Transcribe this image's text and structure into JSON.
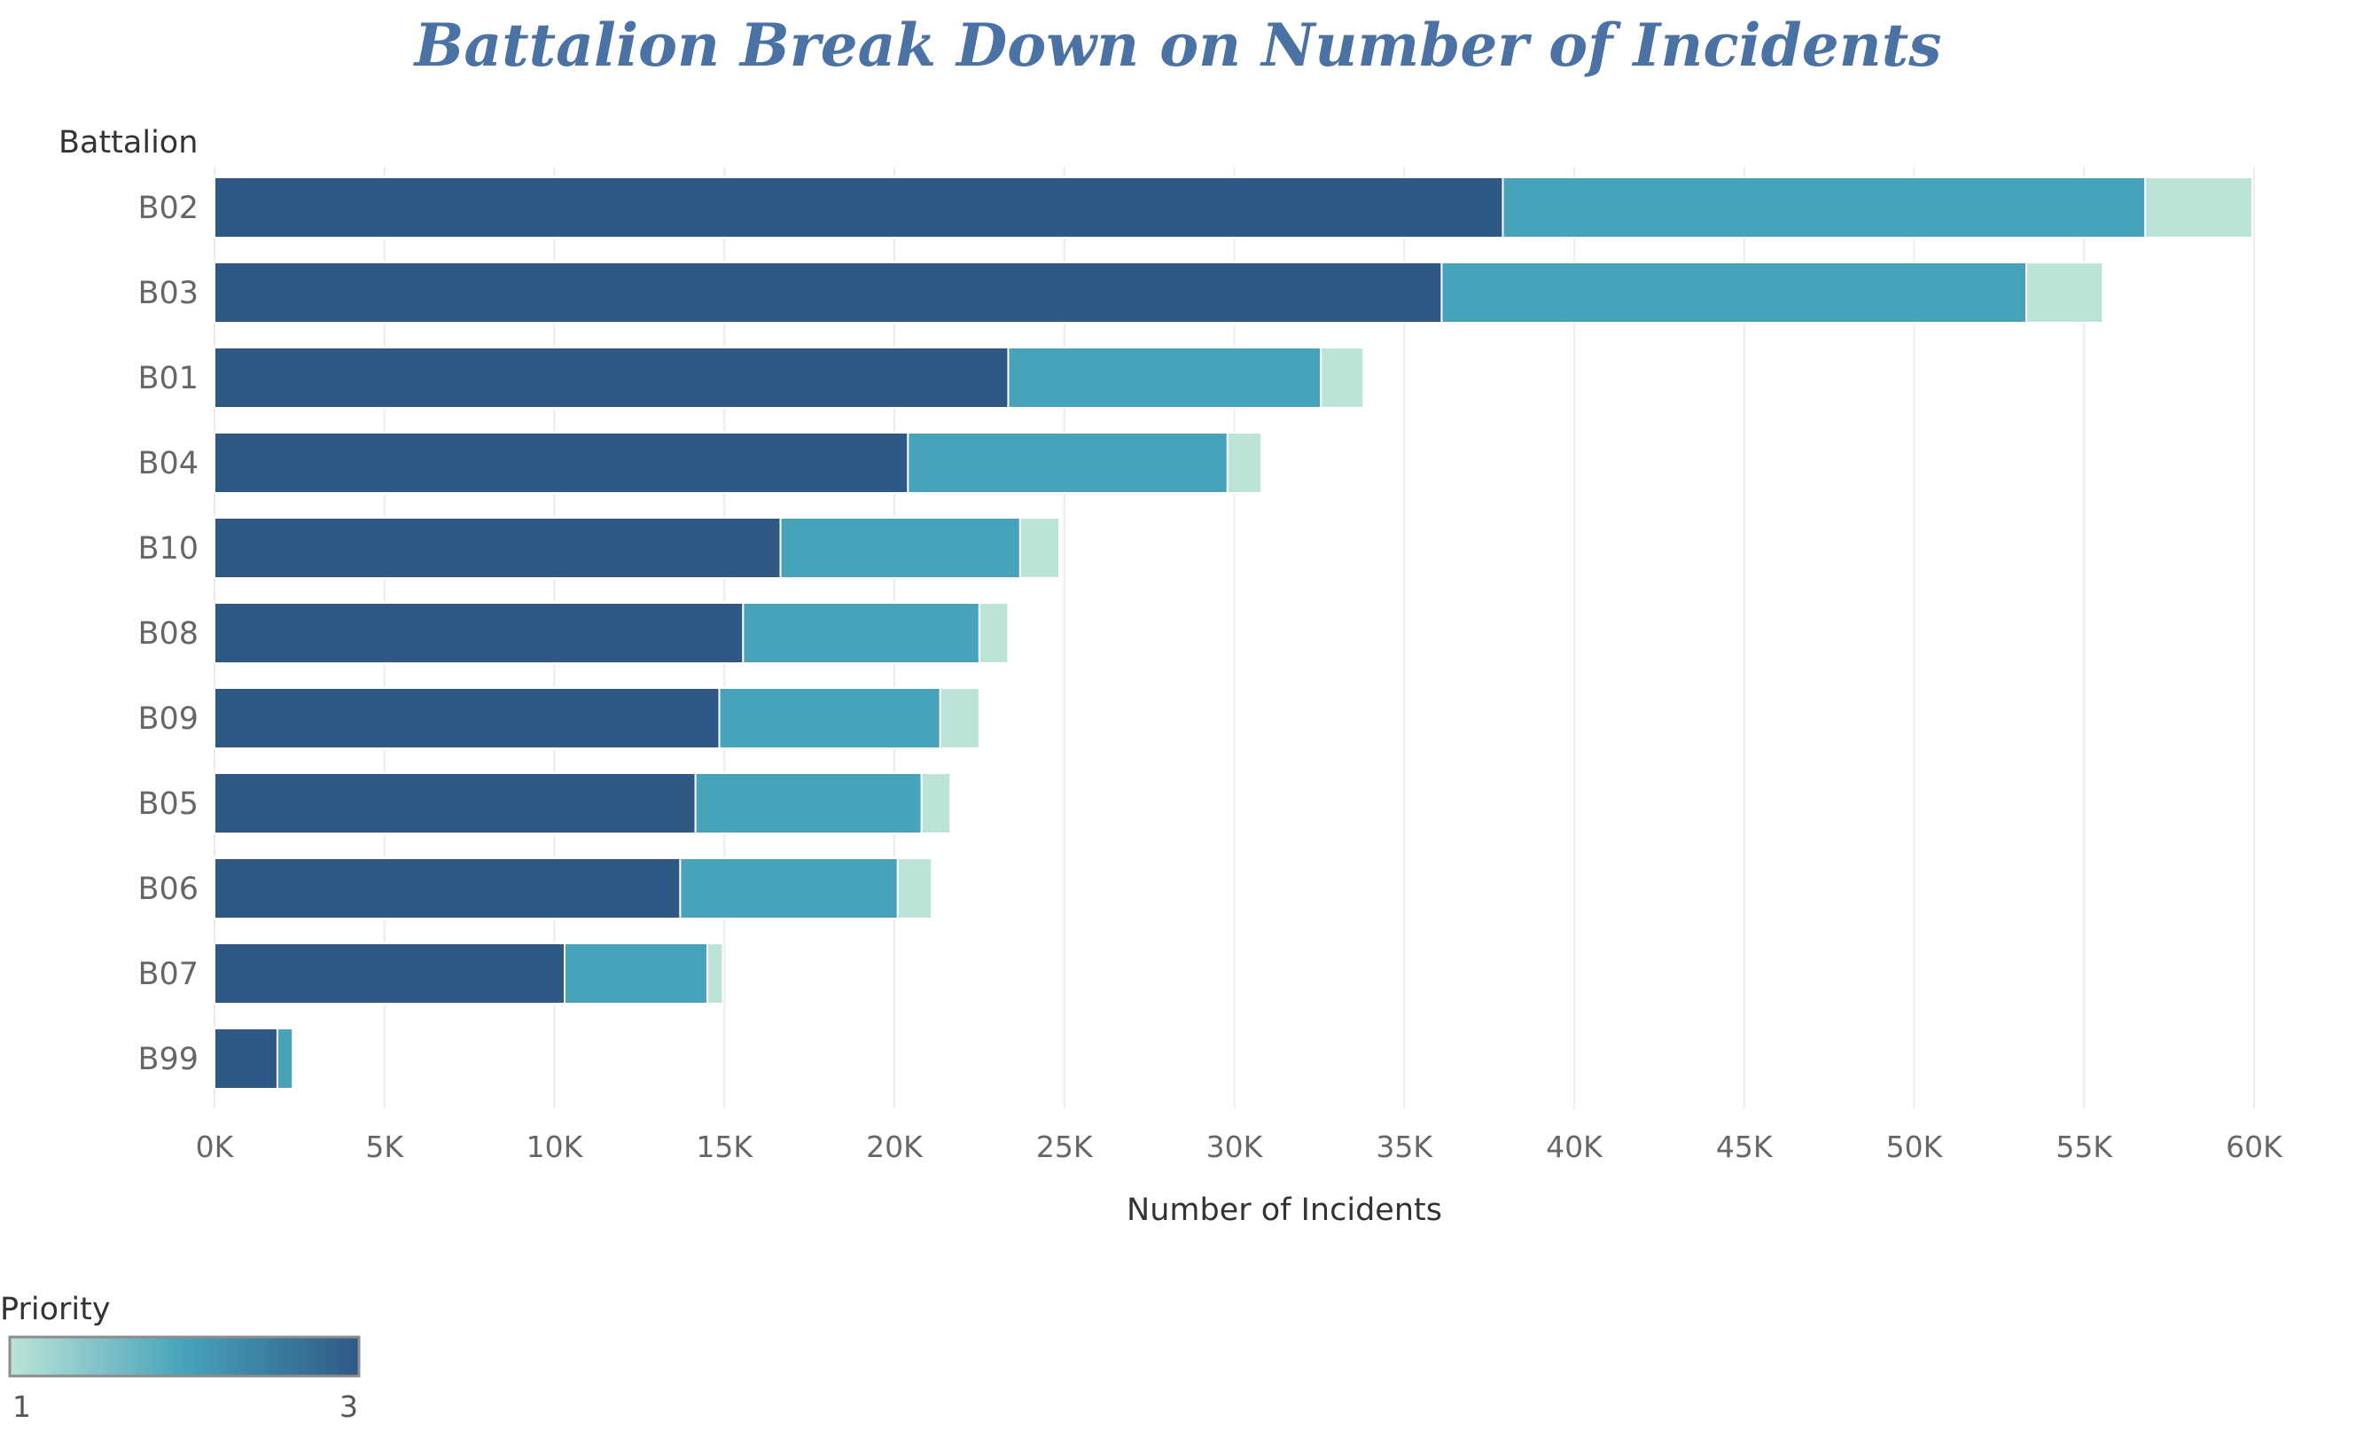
{
  "chart_data": {
    "type": "bar",
    "orientation": "horizontal",
    "stacked": true,
    "title": "Battalion Break Down on Number of Incidents",
    "xlabel": "Number of Incidents",
    "ylabel": "Battalion",
    "xlim": [
      0,
      60000
    ],
    "xticks": [
      0,
      5000,
      10000,
      15000,
      20000,
      25000,
      30000,
      35000,
      40000,
      45000,
      50000,
      55000,
      60000
    ],
    "xtick_labels": [
      "0K",
      "5K",
      "10K",
      "15K",
      "20K",
      "25K",
      "30K",
      "35K",
      "40K",
      "45K",
      "50K",
      "55K",
      "60K"
    ],
    "grid": true,
    "categories": [
      "B02",
      "B03",
      "B01",
      "B04",
      "B10",
      "B08",
      "B09",
      "B05",
      "B06",
      "B07",
      "B99"
    ],
    "series": [
      {
        "name": "3",
        "color": "#2e5985",
        "values": [
          37900,
          36100,
          23350,
          20400,
          16650,
          15550,
          14850,
          14150,
          13700,
          10300,
          1850
        ]
      },
      {
        "name": "2",
        "color": "#47a3b9",
        "values": [
          18900,
          17200,
          9200,
          9400,
          7050,
          6950,
          6500,
          6650,
          6400,
          4200,
          450
        ]
      },
      {
        "name": "1",
        "color": "#bce3d8",
        "values": [
          3150,
          2250,
          1250,
          1000,
          1150,
          850,
          1150,
          850,
          1000,
          450,
          0
        ]
      }
    ],
    "legend": {
      "title": "Priority",
      "type": "continuous",
      "min_label": "1",
      "max_label": "3",
      "colors": [
        "#bce3d8",
        "#47a3b9",
        "#2e5985"
      ],
      "placement": "bottom-left"
    }
  }
}
